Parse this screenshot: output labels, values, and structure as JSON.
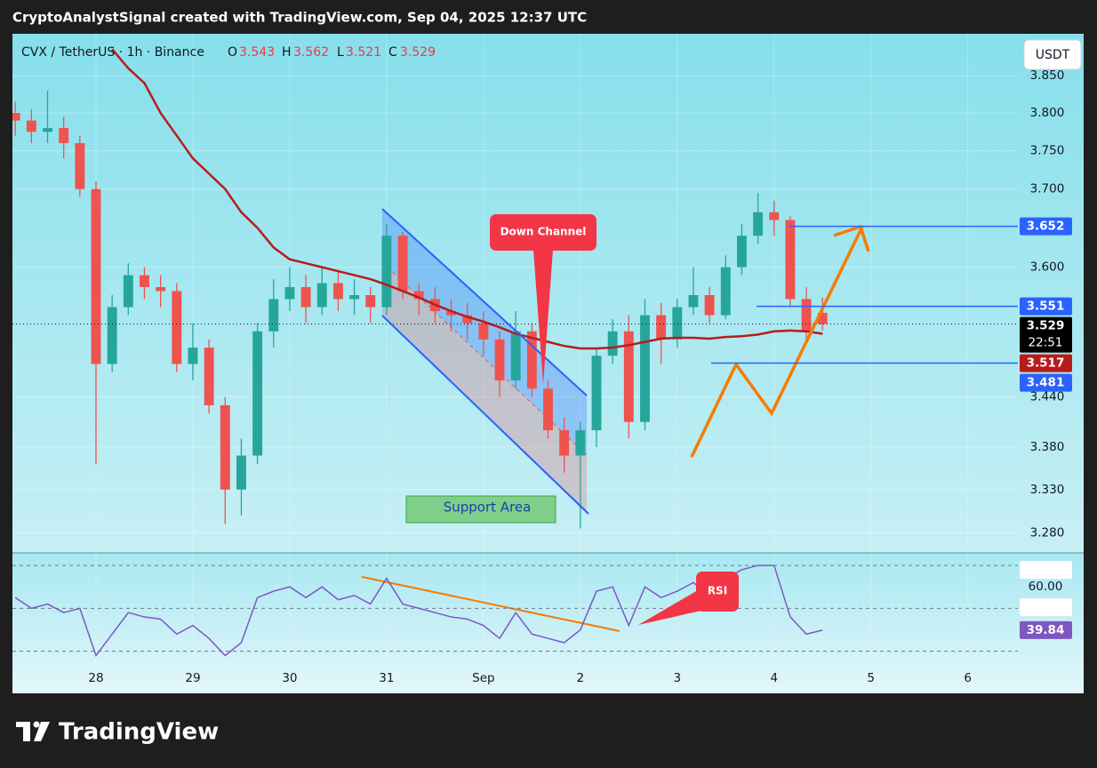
{
  "header": "CryptoAnalystSignal created with TradingView.com, Sep 04, 2025 12:37 UTC",
  "footer": "TradingView",
  "chart_data": {
    "type": "candlestick",
    "title": "CVX / TetherUS · 1h · Binance",
    "ohlc_labels": [
      "O",
      "H",
      "L",
      "C"
    ],
    "currency": "USDT",
    "countdown": "22:51",
    "log_scale": true,
    "grid": true,
    "up_color": "#26a69a",
    "down_color": "#ef5350",
    "xlim": [
      -20.7,
      228.4
    ],
    "xticks": [
      {
        "value": 0,
        "label": "28"
      },
      {
        "value": 24,
        "label": "29"
      },
      {
        "value": 48,
        "label": "30"
      },
      {
        "value": 72,
        "label": "31"
      },
      {
        "value": 96,
        "label": "Sep"
      },
      {
        "value": 120,
        "label": "2"
      },
      {
        "value": 144,
        "label": "3"
      },
      {
        "value": 168,
        "label": "4"
      },
      {
        "value": 192,
        "label": "5"
      },
      {
        "value": 216,
        "label": "6"
      }
    ],
    "ylim": [
      3.259,
      3.907
    ],
    "yticks": [
      {
        "value": 3.28,
        "label": "3.280"
      },
      {
        "value": 3.33,
        "label": "3.330"
      },
      {
        "value": 3.38,
        "label": "3.380"
      },
      {
        "value": 3.44,
        "label": "3.440"
      },
      {
        "value": 3.6,
        "label": "3.600"
      },
      {
        "value": 3.7,
        "label": "3.700"
      },
      {
        "value": 3.75,
        "label": "3.750"
      },
      {
        "value": 3.8,
        "label": "3.800"
      },
      {
        "value": 3.85,
        "label": "3.850"
      }
    ],
    "x": [
      -20,
      -16,
      -12,
      -8,
      -4,
      0,
      4,
      8,
      12,
      16,
      20,
      24,
      28,
      32,
      36,
      40,
      44,
      48,
      52,
      56,
      60,
      64,
      68,
      72,
      76,
      80,
      84,
      88,
      92,
      96,
      100,
      104,
      108,
      112,
      116,
      120,
      124,
      128,
      132,
      136,
      140,
      144,
      148,
      152,
      156,
      160,
      164,
      168,
      172,
      176,
      180
    ],
    "open": [
      3.8,
      3.79,
      3.775,
      3.78,
      3.76,
      3.7,
      3.48,
      3.55,
      3.59,
      3.575,
      3.57,
      3.48,
      3.5,
      3.43,
      3.33,
      3.37,
      3.52,
      3.56,
      3.575,
      3.55,
      3.58,
      3.56,
      3.565,
      3.55,
      3.64,
      3.57,
      3.56,
      3.545,
      3.54,
      3.53,
      3.51,
      3.46,
      3.52,
      3.45,
      3.4,
      3.37,
      3.4,
      3.49,
      3.52,
      3.41,
      3.54,
      3.51,
      3.55,
      3.565,
      3.54,
      3.6,
      3.64,
      3.67,
      3.66,
      3.56,
      3.543
    ],
    "high": [
      3.815,
      3.805,
      3.83,
      3.795,
      3.77,
      3.71,
      3.565,
      3.605,
      3.6,
      3.59,
      3.58,
      3.53,
      3.51,
      3.44,
      3.39,
      3.53,
      3.585,
      3.6,
      3.59,
      3.6,
      3.595,
      3.585,
      3.575,
      3.655,
      3.645,
      3.58,
      3.575,
      3.56,
      3.555,
      3.545,
      3.52,
      3.545,
      3.53,
      3.46,
      3.415,
      3.41,
      3.5,
      3.535,
      3.54,
      3.56,
      3.555,
      3.56,
      3.6,
      3.575,
      3.615,
      3.655,
      3.695,
      3.685,
      3.665,
      3.575,
      3.562
    ],
    "low": [
      3.77,
      3.76,
      3.76,
      3.74,
      3.69,
      3.36,
      3.47,
      3.54,
      3.56,
      3.55,
      3.47,
      3.46,
      3.42,
      3.29,
      3.3,
      3.36,
      3.5,
      3.545,
      3.53,
      3.54,
      3.545,
      3.54,
      3.53,
      3.54,
      3.56,
      3.54,
      3.53,
      3.52,
      3.51,
      3.49,
      3.44,
      3.45,
      3.44,
      3.39,
      3.35,
      3.285,
      3.38,
      3.48,
      3.39,
      3.4,
      3.48,
      3.5,
      3.54,
      3.53,
      3.535,
      3.59,
      3.63,
      3.64,
      3.55,
      3.505,
      3.521
    ],
    "close": [
      3.79,
      3.775,
      3.78,
      3.76,
      3.7,
      3.48,
      3.55,
      3.59,
      3.575,
      3.57,
      3.48,
      3.5,
      3.43,
      3.33,
      3.37,
      3.52,
      3.56,
      3.575,
      3.55,
      3.58,
      3.56,
      3.565,
      3.55,
      3.64,
      3.57,
      3.56,
      3.545,
      3.54,
      3.53,
      3.51,
      3.46,
      3.52,
      3.45,
      3.4,
      3.37,
      3.4,
      3.49,
      3.52,
      3.41,
      3.54,
      3.51,
      3.55,
      3.565,
      3.54,
      3.6,
      3.64,
      3.67,
      3.66,
      3.56,
      3.52,
      3.529
    ],
    "ma": {
      "color": "#b71c1c",
      "values": [
        null,
        null,
        null,
        null,
        null,
        null,
        3.886,
        3.86,
        3.84,
        3.8,
        3.77,
        3.74,
        3.72,
        3.7,
        3.67,
        3.65,
        3.625,
        3.61,
        3.605,
        3.6,
        3.595,
        3.59,
        3.585,
        3.578,
        3.57,
        3.562,
        3.553,
        3.545,
        3.538,
        3.532,
        3.525,
        3.517,
        3.512,
        3.507,
        3.502,
        3.499,
        3.499,
        3.5,
        3.503,
        3.507,
        3.511,
        3.512,
        3.512,
        3.511,
        3.513,
        3.514,
        3.516,
        3.52,
        3.521,
        3.52,
        3.517
      ]
    },
    "price_lines": [
      {
        "value": 3.652,
        "color": "#2962ff"
      },
      {
        "value": 3.551,
        "color": "#2962ff"
      },
      {
        "value": 3.481,
        "color": "#2962ff"
      }
    ],
    "rsi": {
      "color": "#7e57c2",
      "ylim": [
        22,
        75
      ],
      "bands": [
        70,
        50,
        30
      ],
      "values": [
        55,
        50,
        52,
        48,
        50,
        28,
        38,
        48,
        46,
        45,
        38,
        42,
        36,
        28,
        34,
        55,
        58,
        60,
        55,
        60,
        54,
        56,
        52,
        64,
        52,
        50,
        48,
        46,
        45,
        42,
        36,
        48,
        38,
        36,
        34,
        40,
        58,
        60,
        42,
        60,
        55,
        58,
        62,
        56,
        64,
        68,
        70,
        70,
        46,
        38,
        39.84
      ],
      "value_labels": {
        "50": "39.84"
      },
      "levels": [
        {
          "value": 67.89,
          "color": "#ffffff"
        },
        {
          "value": 60,
          "label": "60.00",
          "color": "none"
        },
        {
          "value": 50.47,
          "color": "#ffffff"
        }
      ]
    },
    "annotations": {
      "down_channel": "Down Channel",
      "support_area": "Support Area",
      "rsi_note": "RSI"
    }
  }
}
